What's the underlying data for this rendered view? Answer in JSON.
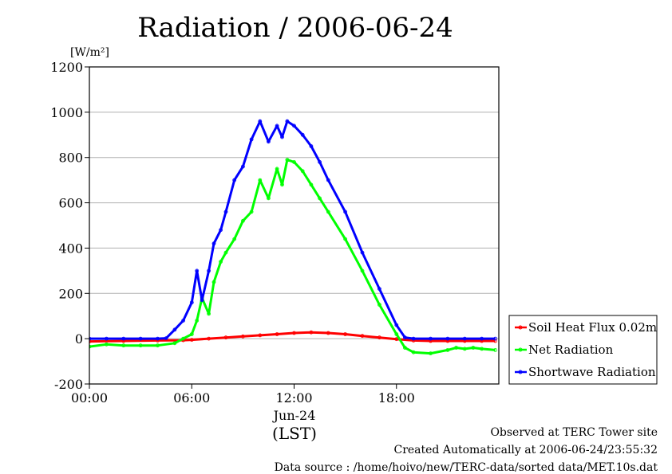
{
  "chart_data": {
    "type": "line",
    "title": "Radiation / 2006-06-24",
    "ylabel": "[W/m²]",
    "xlabel": "(LST)",
    "date_label": "Jun-24",
    "ylim": [
      -200,
      1200
    ],
    "xlim_hours": [
      0,
      24
    ],
    "y_ticks": [
      "-200",
      "0",
      "200",
      "400",
      "600",
      "800",
      "1000",
      "1200"
    ],
    "x_ticks": [
      "00:00",
      "06:00",
      "12:00",
      "18:00"
    ],
    "grid": true,
    "legend_position": "right",
    "series": [
      {
        "name": "Soil Heat Flux 0.02m",
        "color": "#ff0000",
        "x_hours": [
          0,
          2,
          4,
          5.5,
          6,
          7,
          8,
          9,
          10,
          11,
          12,
          13,
          14,
          15,
          16,
          17,
          18,
          19,
          20,
          21,
          22,
          23,
          23.8
        ],
        "values": [
          -12,
          -10,
          -8,
          -7,
          -5,
          0,
          5,
          10,
          15,
          20,
          25,
          28,
          25,
          20,
          12,
          5,
          -2,
          -8,
          -10,
          -10,
          -10,
          -10,
          -10
        ]
      },
      {
        "name": "Net Radiation",
        "color": "#00ff00",
        "x_hours": [
          0,
          1,
          2,
          3,
          4,
          5,
          5.5,
          6,
          6.3,
          6.6,
          7,
          7.3,
          7.7,
          8,
          8.5,
          9,
          9.5,
          10,
          10.5,
          11,
          11.3,
          11.6,
          12,
          12.5,
          13,
          13.5,
          14,
          15,
          16,
          17,
          18,
          18.5,
          19,
          20,
          21,
          21.5,
          22,
          22.5,
          23,
          23.8
        ],
        "values": [
          -35,
          -25,
          -30,
          -30,
          -30,
          -20,
          0,
          20,
          80,
          180,
          110,
          250,
          340,
          380,
          440,
          520,
          560,
          700,
          620,
          750,
          680,
          790,
          780,
          740,
          680,
          620,
          560,
          440,
          300,
          150,
          20,
          -40,
          -60,
          -65,
          -50,
          -40,
          -45,
          -40,
          -45,
          -50
        ]
      },
      {
        "name": "Shortwave Radiation",
        "color": "#0000ff",
        "x_hours": [
          0,
          1,
          2,
          3,
          4,
          4.5,
          5,
          5.5,
          6,
          6.3,
          6.6,
          7,
          7.3,
          7.7,
          8,
          8.5,
          9,
          9.5,
          10,
          10.5,
          11,
          11.3,
          11.6,
          12,
          12.5,
          13,
          13.5,
          14,
          15,
          16,
          17,
          18,
          18.5,
          19,
          20,
          21,
          22,
          23,
          23.8
        ],
        "values": [
          0,
          0,
          0,
          0,
          0,
          2,
          40,
          80,
          160,
          300,
          170,
          300,
          420,
          480,
          560,
          700,
          760,
          880,
          960,
          870,
          940,
          890,
          960,
          940,
          900,
          850,
          780,
          700,
          560,
          380,
          220,
          60,
          5,
          0,
          0,
          0,
          0,
          0,
          0
        ]
      }
    ]
  },
  "footer": {
    "line1": "Observed at TERC Tower site",
    "line2": "Created Automatically at 2006-06-24/23:55:32",
    "line3": "Data source : /home/hoivo/new/TERC-data/sorted  data/MET.10s.dat"
  }
}
